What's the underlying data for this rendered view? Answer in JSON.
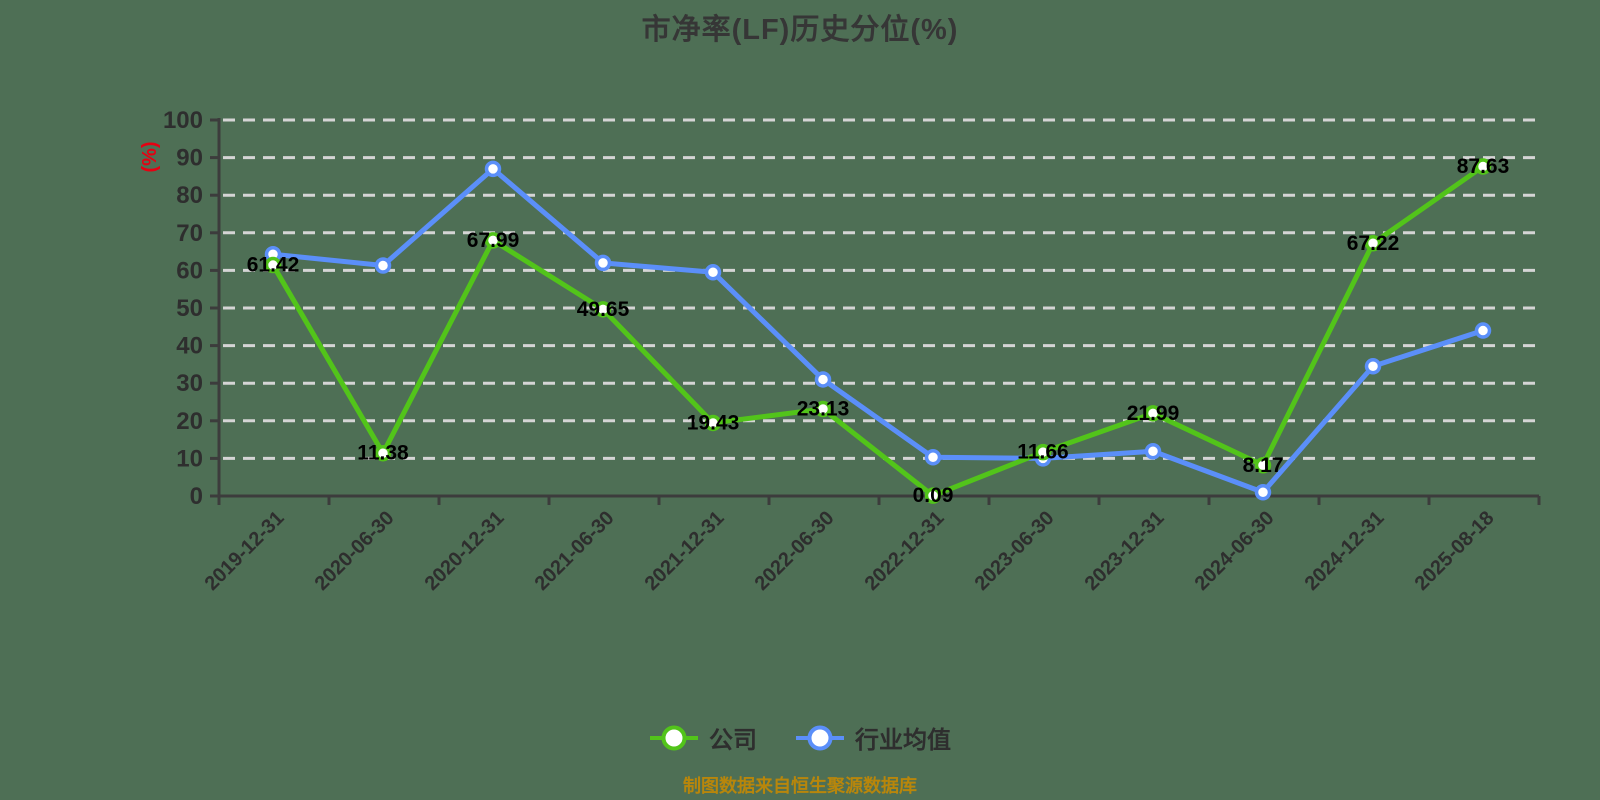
{
  "title": "市净率(LF)历史分位(%)",
  "y_axis_unit_label": "(%)",
  "footer": {
    "text": "制图数据来自恒生聚源数据库"
  },
  "colors": {
    "background": "#4e6f55",
    "grid": "#d5d5d5",
    "axis": "#3c3c3c",
    "tick_text": "#2e2e2e",
    "title_text": "#363636",
    "value_label": "#000000",
    "y_unit_label": "#e60012",
    "footer_text": "#b8860b",
    "company": "#52c41a",
    "industry": "#5b8ff9"
  },
  "chart_data": {
    "type": "line",
    "title": "市净率(LF)历史分位(%)",
    "xlabel": "",
    "ylabel": "(%)",
    "ylim": [
      0,
      100
    ],
    "ytick_step": 10,
    "grid": true,
    "grid_style": "dashed",
    "legend_position": "bottom",
    "categories": [
      "2019-12-31",
      "2020-06-30",
      "2020-12-31",
      "2021-06-30",
      "2021-12-31",
      "2022-06-30",
      "2022-12-31",
      "2023-06-30",
      "2023-12-31",
      "2024-06-30",
      "2024-12-31",
      "2025-08-18"
    ],
    "series": [
      {
        "name": "公司",
        "color": "#52c41a",
        "show_point_labels": true,
        "values": [
          61.42,
          11.38,
          67.99,
          49.65,
          19.43,
          23.13,
          0.09,
          11.66,
          21.99,
          8.17,
          67.22,
          87.63
        ]
      },
      {
        "name": "行业均值",
        "color": "#5b8ff9",
        "show_point_labels": false,
        "values": [
          64.3,
          61.3,
          87.0,
          62.0,
          59.5,
          31.0,
          10.3,
          10.0,
          11.9,
          1.0,
          34.5,
          44.0
        ]
      }
    ]
  }
}
